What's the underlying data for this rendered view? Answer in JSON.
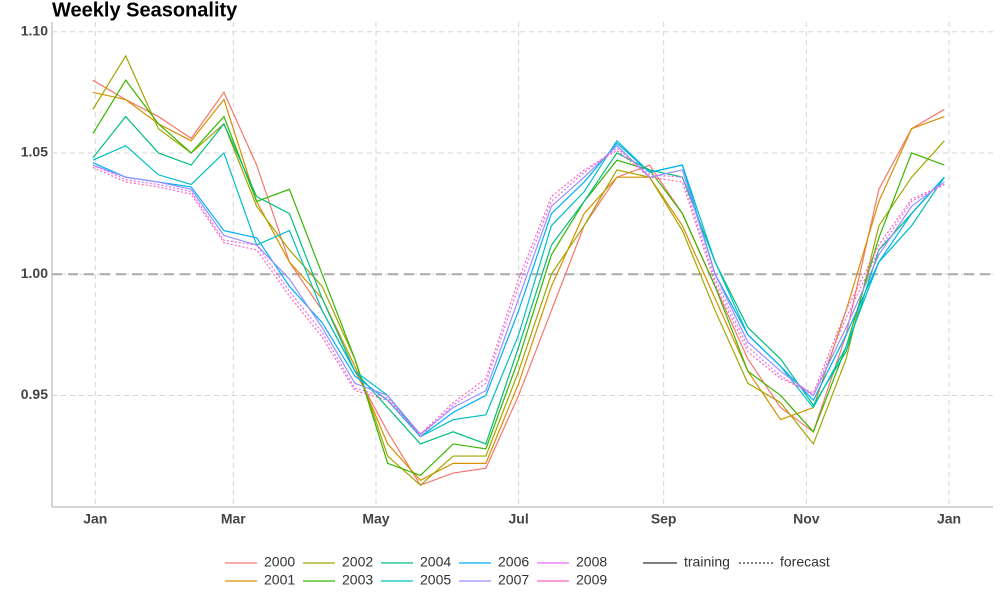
{
  "chart_data": {
    "type": "line",
    "title": "Weekly Seasonality",
    "x": [
      0,
      14,
      28,
      42,
      56,
      70,
      84,
      98,
      112,
      126,
      140,
      154,
      168,
      182,
      196,
      210,
      224,
      238,
      252,
      266,
      280,
      294,
      308,
      322,
      336,
      350,
      364
    ],
    "xlim": [
      -17.5,
      384.8
    ],
    "xticks": [
      {
        "value": 1,
        "label": "Jan"
      },
      {
        "value": 60,
        "label": "Mar"
      },
      {
        "value": 121,
        "label": "May"
      },
      {
        "value": 182,
        "label": "Jul"
      },
      {
        "value": 244,
        "label": "Sep"
      },
      {
        "value": 305,
        "label": "Nov"
      },
      {
        "value": 366,
        "label": "Jan"
      }
    ],
    "ylim": [
      0.904,
      1.104
    ],
    "yticks": [
      0.95,
      {
        "value": 1.0,
        "label": "1.00"
      },
      1.05,
      {
        "value": 1.1,
        "label": "1.10"
      }
    ],
    "grid": true,
    "hline": 1.0,
    "linetypes": [
      "training",
      "forecast"
    ],
    "series": [
      {
        "name": "2000",
        "color": "#F8766D",
        "linetype": "training",
        "values": [
          1.08,
          1.072,
          1.065,
          1.056,
          1.075,
          1.045,
          1.005,
          0.985,
          0.96,
          0.935,
          0.913,
          0.918,
          0.92,
          0.95,
          0.985,
          1.02,
          1.04,
          1.045,
          1.025,
          0.995,
          0.965,
          0.945,
          0.935,
          0.975,
          1.035,
          1.06,
          1.068
        ]
      },
      {
        "name": "2001",
        "color": "#D89000",
        "linetype": "training",
        "values": [
          1.075,
          1.072,
          1.062,
          1.055,
          1.072,
          1.03,
          1.005,
          0.99,
          0.962,
          0.93,
          0.915,
          0.922,
          0.922,
          0.955,
          0.995,
          1.025,
          1.04,
          1.04,
          1.02,
          0.99,
          0.96,
          0.94,
          0.945,
          0.985,
          1.03,
          1.06,
          1.065
        ]
      },
      {
        "name": "2002",
        "color": "#A3A500",
        "linetype": "training",
        "values": [
          1.068,
          1.09,
          1.06,
          1.05,
          1.062,
          1.028,
          1.01,
          0.995,
          0.965,
          0.925,
          0.913,
          0.925,
          0.925,
          0.96,
          1.0,
          1.02,
          1.043,
          1.04,
          1.018,
          0.985,
          0.955,
          0.947,
          0.93,
          0.965,
          1.02,
          1.04,
          1.055
        ]
      },
      {
        "name": "2003",
        "color": "#39B600",
        "linetype": "training",
        "values": [
          1.058,
          1.08,
          1.062,
          1.05,
          1.065,
          1.03,
          1.035,
          1.0,
          0.965,
          0.922,
          0.917,
          0.93,
          0.928,
          0.965,
          1.008,
          1.03,
          1.047,
          1.043,
          1.025,
          0.995,
          0.96,
          0.95,
          0.935,
          0.97,
          1.015,
          1.05,
          1.045
        ]
      },
      {
        "name": "2004",
        "color": "#00BF7D",
        "linetype": "training",
        "values": [
          1.048,
          1.065,
          1.05,
          1.045,
          1.062,
          1.032,
          1.025,
          0.99,
          0.96,
          0.945,
          0.93,
          0.935,
          0.93,
          0.97,
          1.012,
          1.03,
          1.05,
          1.043,
          1.04,
          1.005,
          0.978,
          0.965,
          0.946,
          0.968,
          1.01,
          1.025,
          1.04
        ]
      },
      {
        "name": "2005",
        "color": "#00BFC4",
        "linetype": "training",
        "values": [
          1.047,
          1.053,
          1.041,
          1.037,
          1.05,
          1.012,
          1.018,
          0.985,
          0.96,
          0.95,
          0.933,
          0.94,
          0.942,
          0.975,
          1.02,
          1.034,
          1.055,
          1.042,
          1.045,
          1.005,
          0.975,
          0.962,
          0.945,
          0.97,
          1.005,
          1.02,
          1.04
        ]
      },
      {
        "name": "2006",
        "color": "#00B0F6",
        "linetype": "training",
        "values": [
          1.046,
          1.04,
          1.038,
          1.036,
          1.018,
          1.015,
          0.995,
          0.98,
          0.958,
          0.948,
          0.933,
          0.943,
          0.95,
          0.985,
          1.025,
          1.038,
          1.054,
          1.042,
          1.045,
          1.0,
          0.975,
          0.962,
          0.948,
          0.975,
          1.005,
          1.025,
          1.04
        ]
      },
      {
        "name": "2007",
        "color": "#9590FF",
        "linetype": "training",
        "values": [
          1.045,
          1.04,
          1.038,
          1.035,
          1.016,
          1.012,
          0.998,
          0.978,
          0.955,
          0.95,
          0.934,
          0.945,
          0.952,
          0.99,
          1.028,
          1.04,
          1.053,
          1.04,
          1.043,
          1.0,
          0.972,
          0.96,
          0.95,
          0.978,
          1.008,
          1.028,
          1.038
        ]
      },
      {
        "name": "2008",
        "color": "#E76BF3",
        "linetype": "forecast",
        "values": [
          1.045,
          1.039,
          1.037,
          1.034,
          1.014,
          1.012,
          0.993,
          0.976,
          0.953,
          0.949,
          0.933,
          0.946,
          0.955,
          0.995,
          1.03,
          1.042,
          1.052,
          1.041,
          1.04,
          0.998,
          0.97,
          0.958,
          0.95,
          0.982,
          1.01,
          1.03,
          1.037
        ]
      },
      {
        "name": "2009",
        "color": "#FF62BC",
        "linetype": "forecast",
        "values": [
          1.044,
          1.038,
          1.036,
          1.033,
          1.013,
          1.01,
          0.991,
          0.974,
          0.952,
          0.948,
          0.934,
          0.947,
          0.957,
          0.998,
          1.032,
          1.043,
          1.051,
          1.04,
          1.038,
          0.996,
          0.968,
          0.957,
          0.951,
          0.985,
          1.012,
          1.031,
          1.037
        ]
      }
    ]
  }
}
